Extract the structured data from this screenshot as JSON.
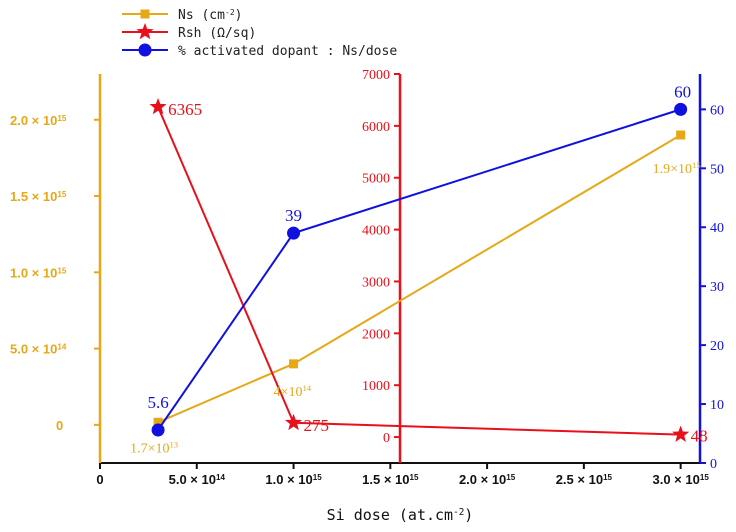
{
  "chart_data": {
    "type": "line",
    "xlabel": "Si dose (at.cm",
    "xlabel_exp": "-2",
    "xlabel_close": ")",
    "xlim": [
      0,
      3100000000000000.0
    ],
    "xticks": [
      {
        "value": 0,
        "mant": "0",
        "exp": ""
      },
      {
        "value": 500000000000000.0,
        "mant": "5.0",
        "exp": "14"
      },
      {
        "value": 1000000000000000.0,
        "mant": "1.0",
        "exp": "15"
      },
      {
        "value": 1500000000000000.0,
        "mant": "1.5",
        "exp": "15"
      },
      {
        "value": 2000000000000000.0,
        "mant": "2.0",
        "exp": "15"
      },
      {
        "value": 2500000000000000.0,
        "mant": "2.5",
        "exp": "15"
      },
      {
        "value": 3000000000000000.0,
        "mant": "3.0",
        "exp": "15"
      }
    ],
    "left_axis": {
      "color": "#E6A817",
      "ylim": [
        -250000000000000.0,
        2300000000000000.0
      ],
      "ticks": [
        {
          "value": 0,
          "mant": "0",
          "exp": ""
        },
        {
          "value": 500000000000000.0,
          "mant": "5.0",
          "exp": "14"
        },
        {
          "value": 1000000000000000.0,
          "mant": "1.0",
          "exp": "15"
        },
        {
          "value": 1500000000000000.0,
          "mant": "1.5",
          "exp": "15"
        },
        {
          "value": 2000000000000000.0,
          "mant": "2.0",
          "exp": "15"
        }
      ]
    },
    "middle_axis": {
      "color": "#E8101A",
      "ylim": [
        -500,
        7000
      ],
      "ticks": [
        0,
        1000,
        2000,
        3000,
        4000,
        5000,
        6000,
        7000
      ]
    },
    "right_axis": {
      "color": "#1010E0",
      "ylim": [
        0,
        66
      ],
      "ticks": [
        0,
        10,
        20,
        30,
        40,
        50,
        60
      ]
    },
    "series": [
      {
        "name": "Ns",
        "legend": "Ns (cm",
        "legend_exp": "-2",
        "legend_close": ")",
        "axis": "left",
        "color": "#E6A817",
        "marker": "square",
        "points": [
          {
            "x": 300000000000000.0,
            "y": 17000000000000.0
          },
          {
            "x": 1000000000000000.0,
            "y": 400000000000000.0
          },
          {
            "x": 3000000000000000.0,
            "y": 1900000000000000.0
          }
        ],
        "labels": [
          {
            "mant": "1.7×10",
            "exp": "13"
          },
          {
            "mant": "4×10",
            "exp": "14"
          },
          {
            "mant": "1.9×10",
            "exp": "15"
          }
        ]
      },
      {
        "name": "Rsh",
        "legend": "Rsh (Ω/sq)",
        "axis": "middle",
        "color": "#E8101A",
        "marker": "star",
        "points": [
          {
            "x": 300000000000000.0,
            "y": 6365
          },
          {
            "x": 1000000000000000.0,
            "y": 275
          },
          {
            "x": 3000000000000000.0,
            "y": 48
          }
        ],
        "labels": [
          "6365",
          "275",
          "48"
        ]
      },
      {
        "name": "% activated dopant",
        "legend": "% activated dopant : Ns/dose",
        "axis": "right",
        "color": "#1010E0",
        "marker": "circle",
        "points": [
          {
            "x": 300000000000000.0,
            "y": 5.6
          },
          {
            "x": 1000000000000000.0,
            "y": 39
          },
          {
            "x": 3000000000000000.0,
            "y": 60
          }
        ],
        "labels": [
          "5.6",
          "39",
          "60"
        ]
      }
    ]
  },
  "tick_prefix": "× 10"
}
